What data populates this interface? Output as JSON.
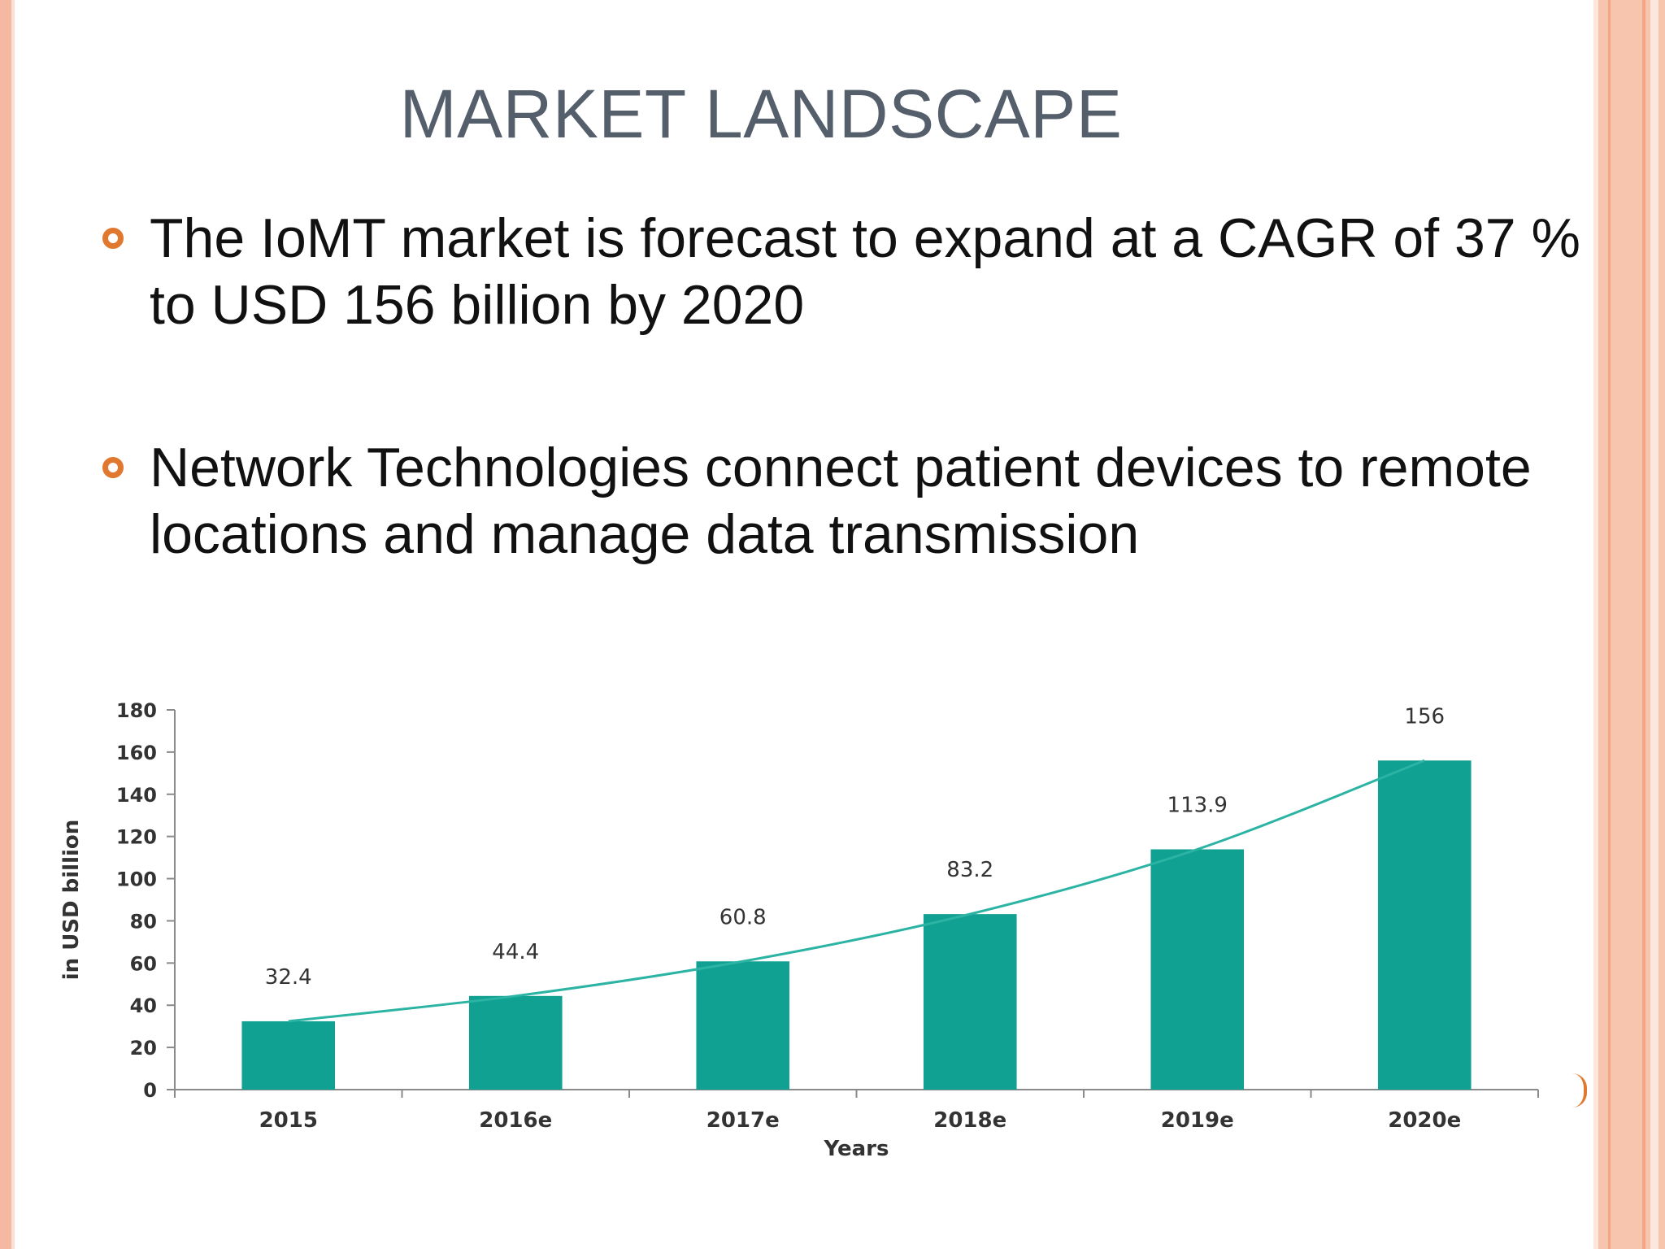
{
  "slide": {
    "title": "MARKET LANDSCAPE",
    "bullets": [
      "The IoMT market is forecast to expand at a CAGR of 37 % to USD 156 billion by 2020",
      "Network Technologies connect patient devices to remote locations and manage data transmission"
    ],
    "colors": {
      "bullet_marker": "#e0792f",
      "bar": "#11a192",
      "title": "#555e6b"
    }
  },
  "chart_data": {
    "type": "bar",
    "categories": [
      "2015",
      "2016e",
      "2017e",
      "2018e",
      "2019e",
      "2020e"
    ],
    "values": [
      32.4,
      44.4,
      60.8,
      83.2,
      113.9,
      156
    ],
    "data_labels": [
      "32.4",
      "44.4",
      "60.8",
      "83.2",
      "113.9",
      "156"
    ],
    "xlabel": "Years",
    "ylabel": "in USD billion",
    "ylim": [
      0,
      180
    ],
    "yticks": [
      0,
      20,
      40,
      60,
      80,
      100,
      120,
      140,
      160,
      180
    ],
    "trendline": true,
    "grid": false,
    "legend": "none"
  }
}
